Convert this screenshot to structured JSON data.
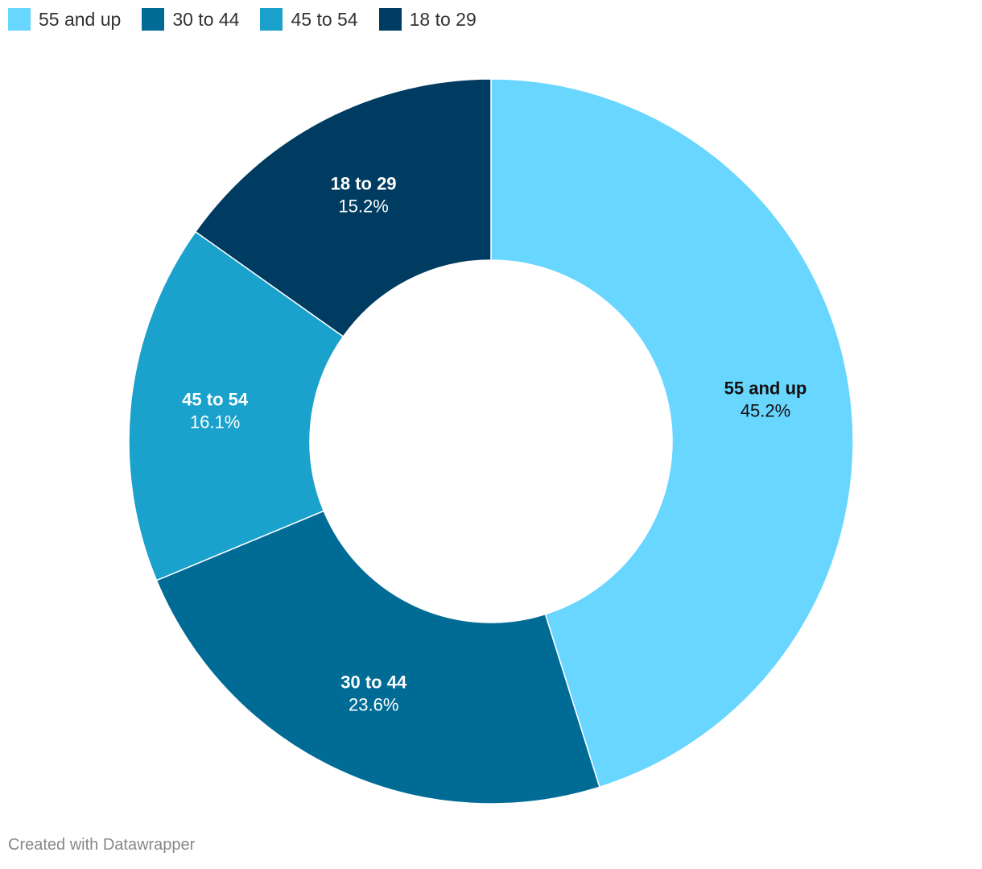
{
  "legend": [
    {
      "label": "55 and up",
      "color": "#69d6ff"
    },
    {
      "label": "30 to 44",
      "color": "#006c96"
    },
    {
      "label": "45 to 54",
      "color": "#1aa1cc"
    },
    {
      "label": "18 to 29",
      "color": "#003c61"
    }
  ],
  "chart_data": {
    "type": "pie",
    "donut": true,
    "start_angle": "12 o'clock, clockwise",
    "slices": [
      {
        "label": "55 and up",
        "value": 45.2,
        "value_label": "45.2%",
        "color": "#69d6ff",
        "text_color": "#111111"
      },
      {
        "label": "30 to 44",
        "value": 23.6,
        "value_label": "23.6%",
        "color": "#006c96",
        "text_color": "#ffffff"
      },
      {
        "label": "45 to 54",
        "value": 16.1,
        "value_label": "16.1%",
        "color": "#1aa1cc",
        "text_color": "#ffffff"
      },
      {
        "label": "18 to 29",
        "value": 15.2,
        "value_label": "15.2%",
        "color": "#003c61",
        "text_color": "#ffffff"
      }
    ],
    "legend_position": "top-left"
  },
  "footer": {
    "credit": "Created with Datawrapper"
  }
}
